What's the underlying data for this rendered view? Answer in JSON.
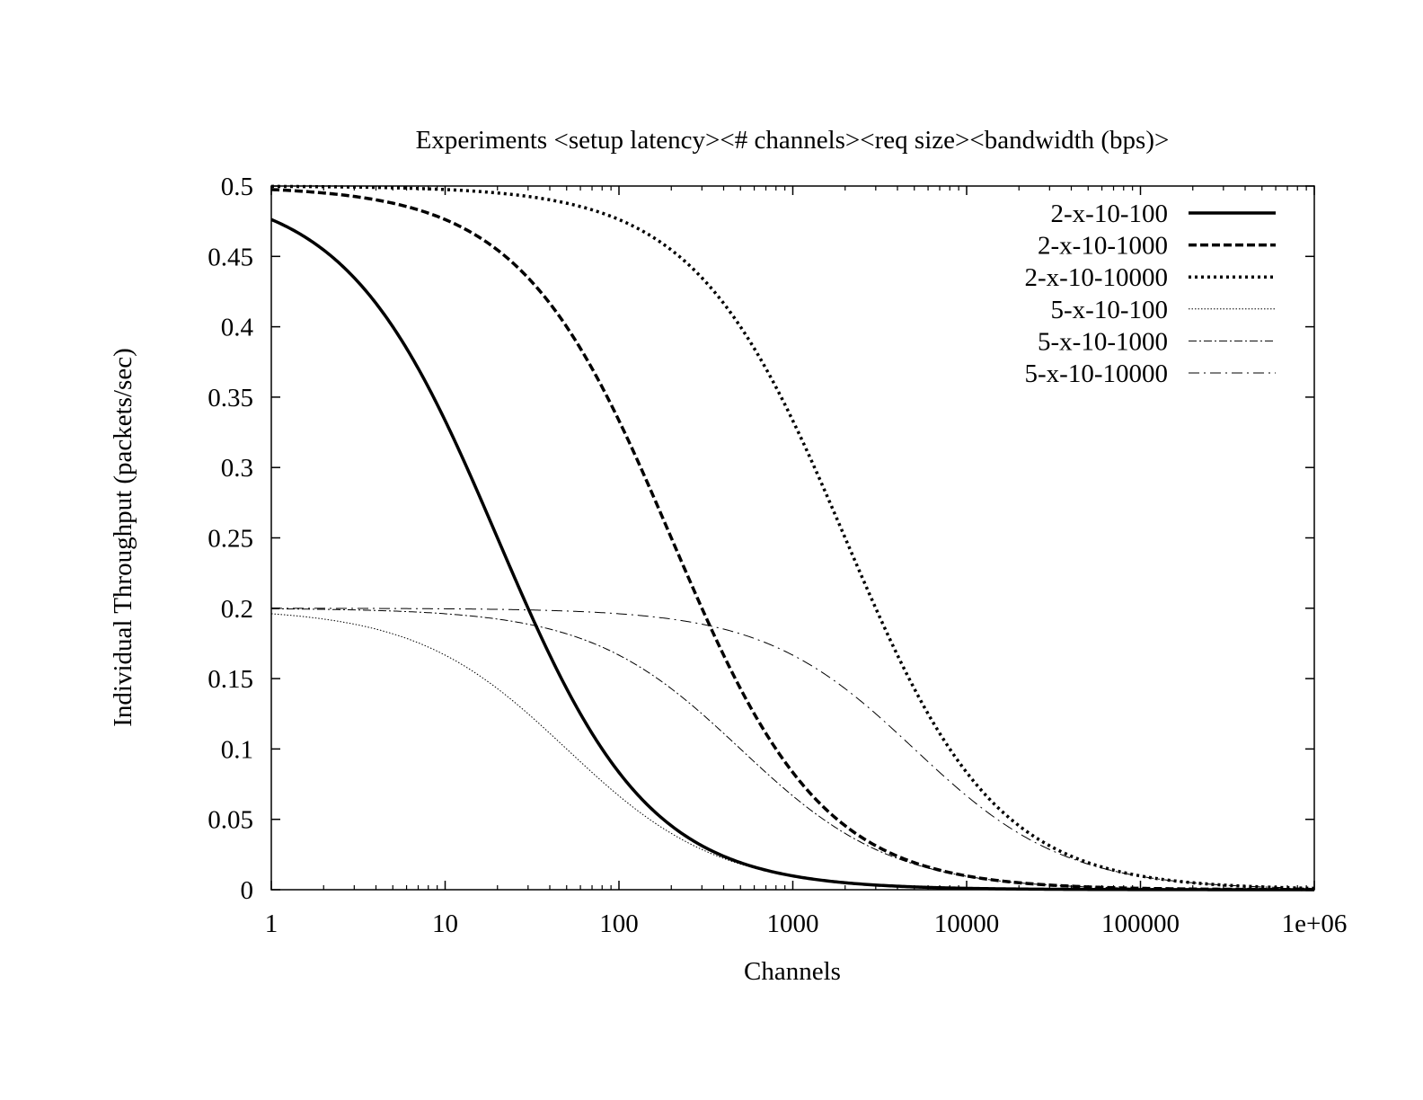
{
  "chart_data": {
    "type": "line",
    "title": "Experiments <setup latency><# channels><req size><bandwidth (bps)>",
    "xlabel": "Channels",
    "ylabel": "Individual Throughput (packets/sec)",
    "xscale": "log",
    "xlim": [
      1,
      1000000
    ],
    "ylim": [
      0,
      0.5
    ],
    "xticks": [
      1,
      10,
      100,
      1000,
      10000,
      100000,
      1000000
    ],
    "xtick_labels": [
      "1",
      "10",
      "100",
      "1000",
      "10000",
      "100000",
      "1e+06"
    ],
    "yticks": [
      0,
      0.05,
      0.1,
      0.15,
      0.2,
      0.25,
      0.3,
      0.35,
      0.4,
      0.45,
      0.5
    ],
    "ytick_labels": [
      "0",
      "0.05",
      "0.1",
      "0.15",
      "0.2",
      "0.25",
      "0.3",
      "0.35",
      "0.4",
      "0.45",
      "0.5"
    ],
    "grid": false,
    "legend_position": "top-right",
    "x": [
      1,
      10,
      100,
      1000,
      10000,
      100000,
      1000000
    ],
    "series": [
      {
        "name": "2-x-10-100",
        "latency": 2,
        "req_size": 10,
        "bandwidth": 100,
        "style": "solid-thick",
        "values": [
          0.476,
          0.333,
          0.0833,
          0.0098,
          0.000998,
          0.0001,
          1e-05
        ]
      },
      {
        "name": "2-x-10-1000",
        "latency": 2,
        "req_size": 10,
        "bandwidth": 1000,
        "style": "dashed-thick",
        "values": [
          0.4975,
          0.4762,
          0.3333,
          0.0833,
          0.0098,
          0.000998,
          0.0001
        ]
      },
      {
        "name": "2-x-10-10000",
        "latency": 2,
        "req_size": 10,
        "bandwidth": 10000,
        "style": "dotted-thick",
        "values": [
          0.49975,
          0.4975,
          0.4762,
          0.3333,
          0.0833,
          0.0098,
          0.000998
        ]
      },
      {
        "name": "5-x-10-100",
        "latency": 5,
        "req_size": 10,
        "bandwidth": 100,
        "style": "dotted-thin",
        "values": [
          0.196,
          0.1667,
          0.0667,
          0.0095,
          0.000998,
          0.0001,
          1e-05
        ]
      },
      {
        "name": "5-x-10-1000",
        "latency": 5,
        "req_size": 10,
        "bandwidth": 1000,
        "style": "dashdot-thin",
        "values": [
          0.1996,
          0.196,
          0.1667,
          0.0667,
          0.0095,
          0.000998,
          0.0001
        ]
      },
      {
        "name": "5-x-10-10000",
        "latency": 5,
        "req_size": 10,
        "bandwidth": 10000,
        "style": "dashdot-long-thin",
        "values": [
          0.19996,
          0.1996,
          0.196,
          0.1667,
          0.0667,
          0.0095,
          0.000998
        ]
      }
    ]
  }
}
